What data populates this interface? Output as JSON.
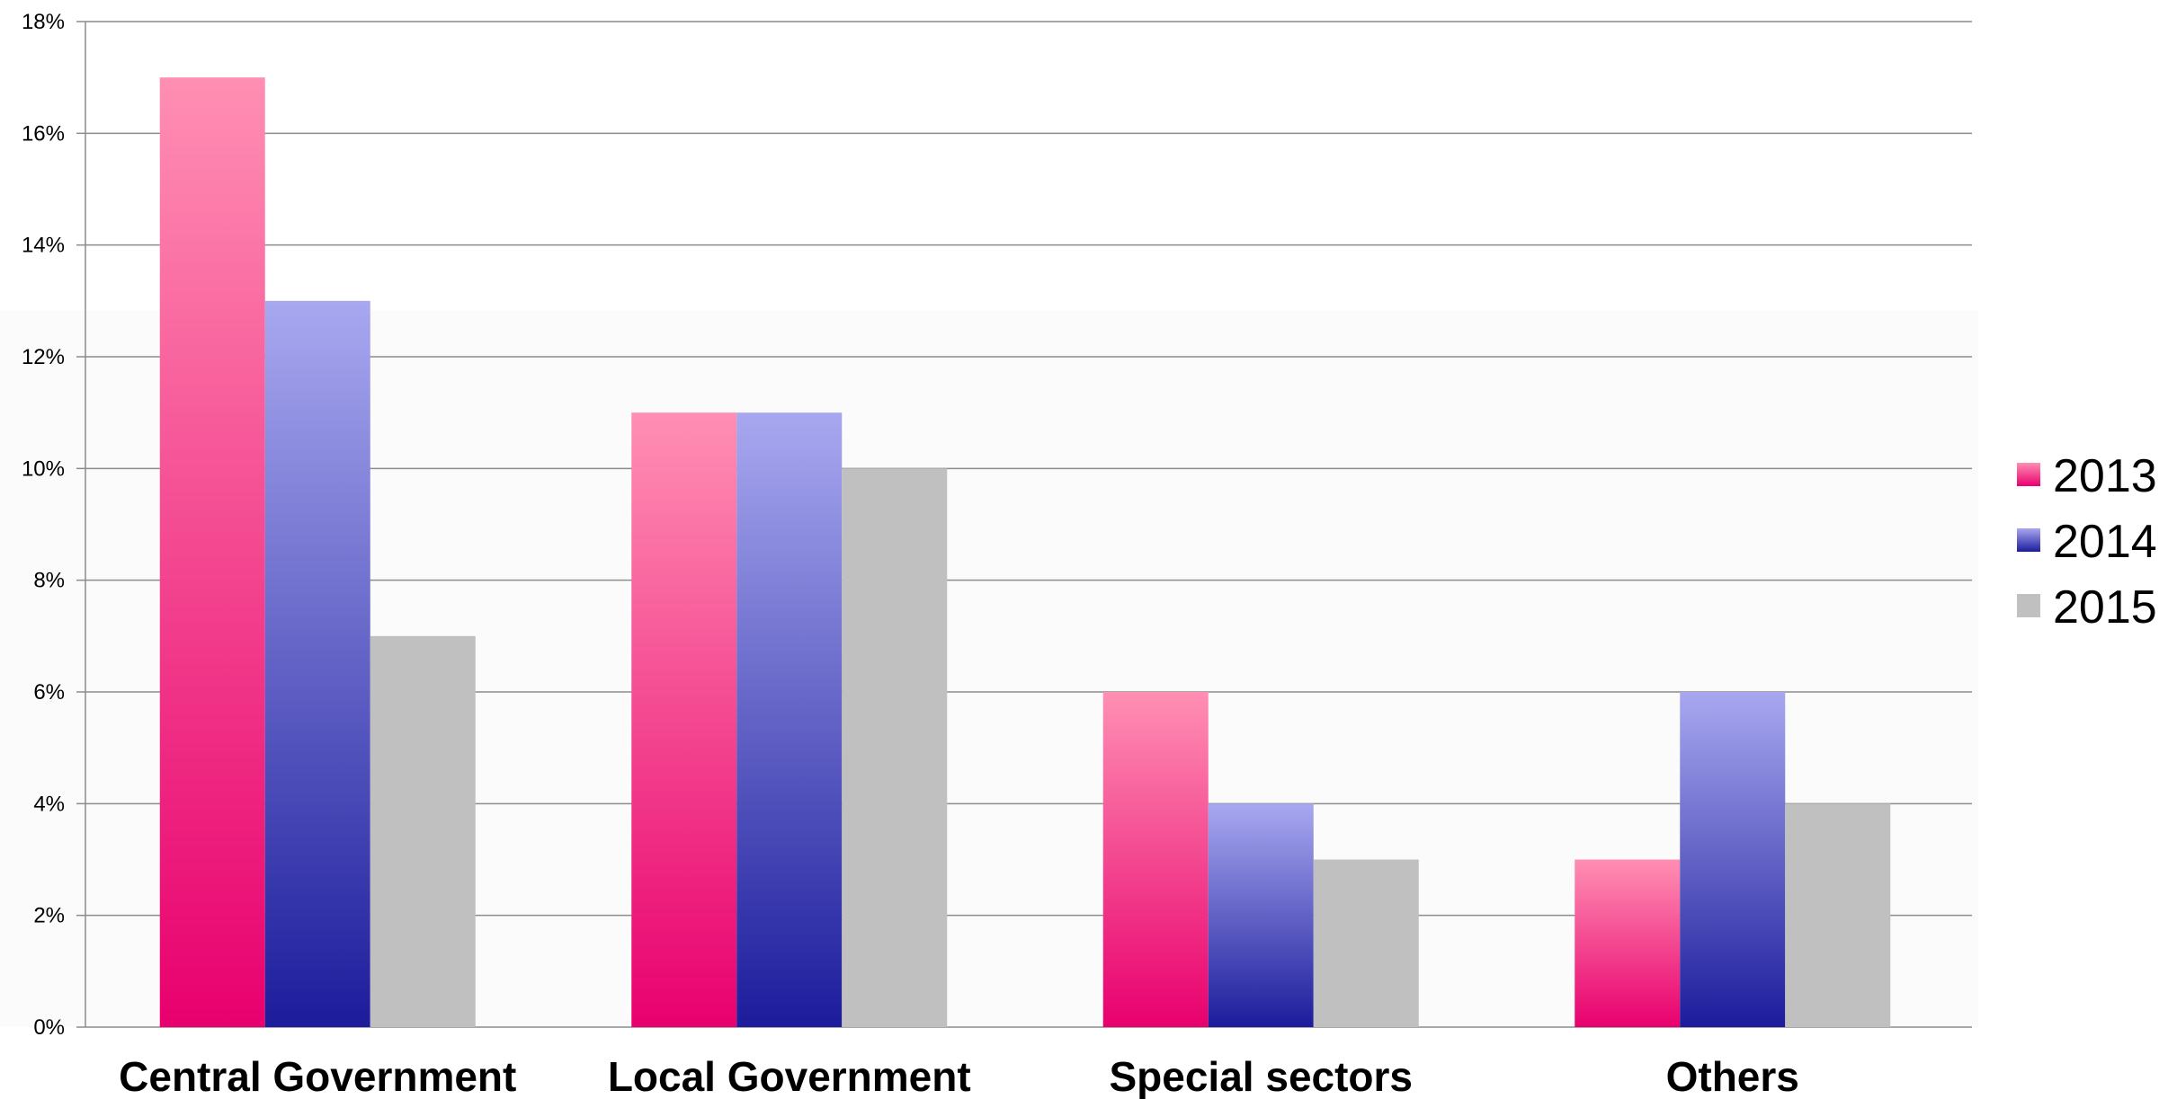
{
  "chart_data": {
    "type": "bar",
    "categories": [
      "Central Government",
      "Local Government",
      "Special sectors",
      "Others"
    ],
    "series": [
      {
        "name": "2013",
        "values": [
          17,
          11,
          6,
          3
        ],
        "color_top": "#ff8fb3",
        "color_bottom": "#e8006e"
      },
      {
        "name": "2014",
        "values": [
          13,
          11,
          4,
          6
        ],
        "color_top": "#a8a8f0",
        "color_bottom": "#1c1c9c"
      },
      {
        "name": "2015",
        "values": [
          7,
          10,
          3,
          4
        ],
        "color_top": "#c0c0c0",
        "color_bottom": "#c0c0c0"
      }
    ],
    "ylim": [
      0,
      18
    ],
    "yticks": [
      "0%",
      "2%",
      "4%",
      "6%",
      "8%",
      "10%",
      "12%",
      "14%",
      "16%",
      "18%"
    ],
    "grid": true,
    "legend_position": "right"
  }
}
